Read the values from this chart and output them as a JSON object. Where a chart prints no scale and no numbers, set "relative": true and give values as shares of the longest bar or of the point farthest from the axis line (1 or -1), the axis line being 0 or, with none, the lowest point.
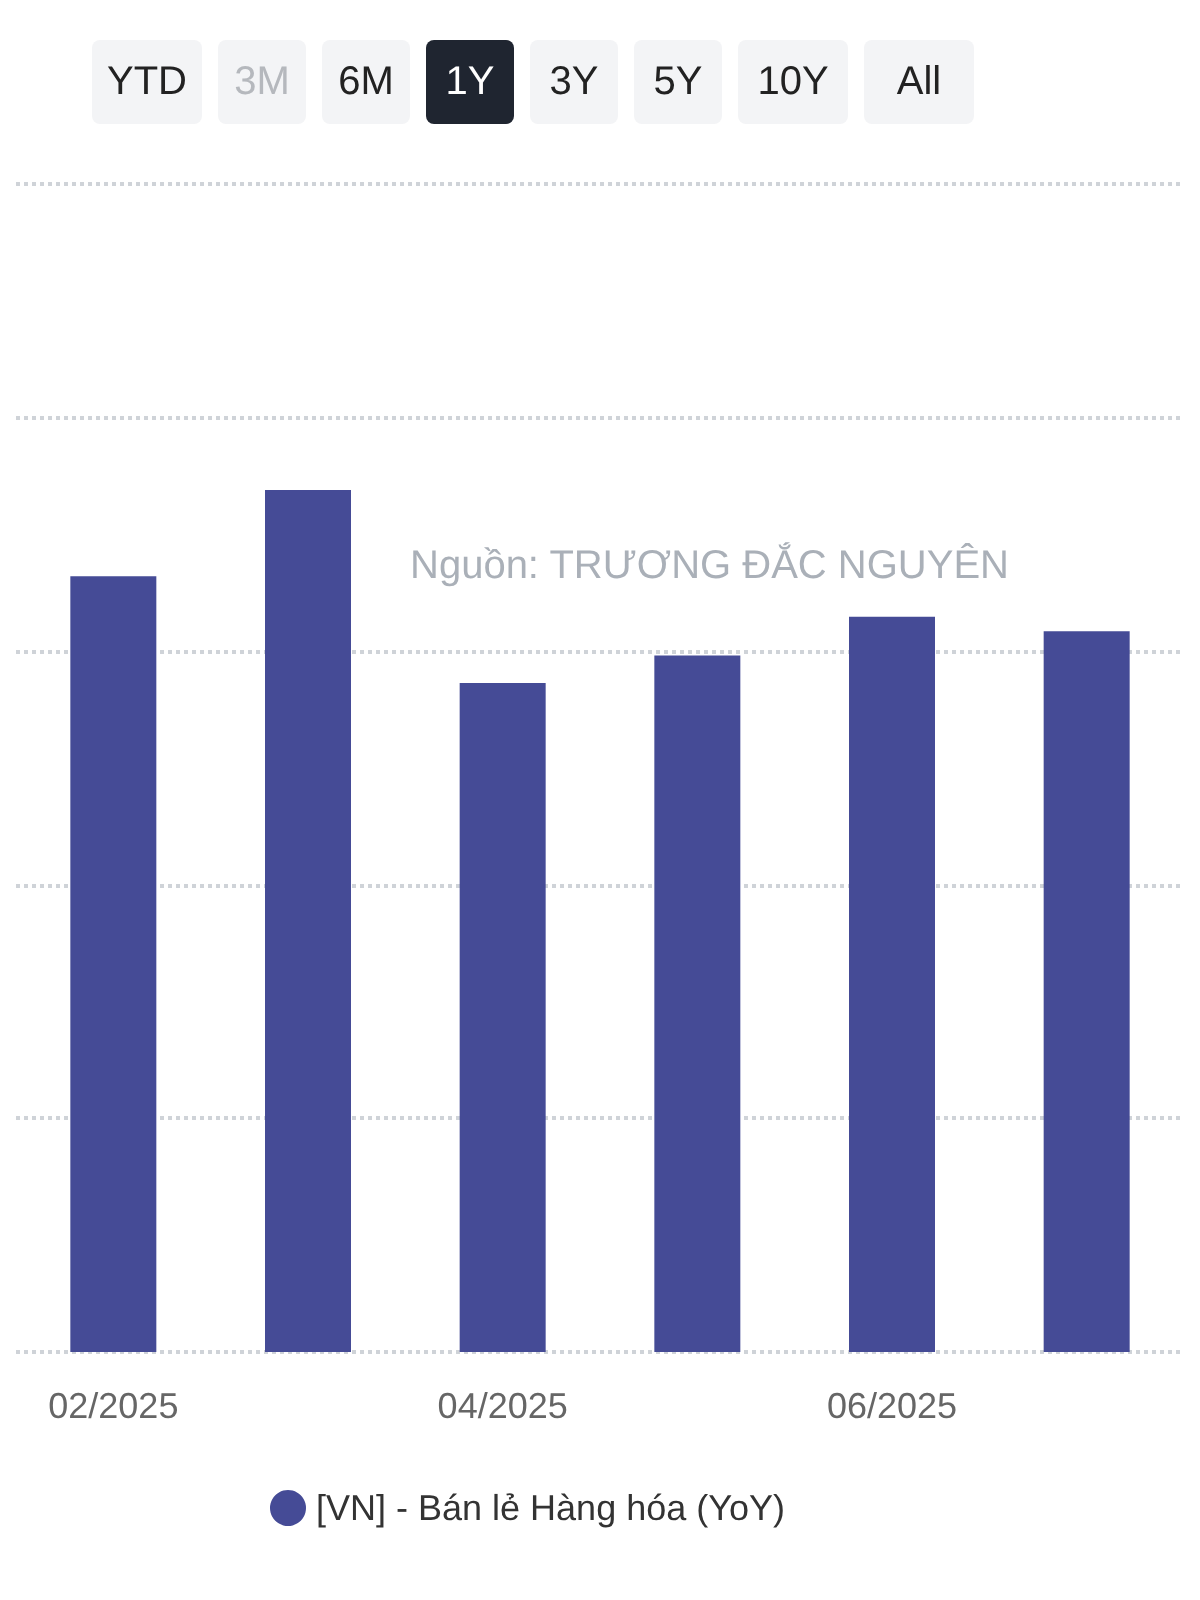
{
  "chart_data": {
    "type": "bar",
    "relative": true,
    "categories": [
      "02/2025",
      null,
      "04/2025",
      null,
      "06/2025",
      null
    ],
    "series": [
      {
        "name": "[VN] - Bán lẻ Hàng hóa (YoY)",
        "color": "#454b96",
        "values": [
          0.9,
          1,
          0.776,
          0.808,
          0.853,
          0.836
        ]
      }
    ],
    "annotations": [
      "YTD",
      "3M",
      "6M",
      "1Y",
      "3Y",
      "5Y",
      "10Y",
      "All",
      "Nguồn: TRƯƠNG ĐẮC NGUYÊN"
    ],
    "grid": "y",
    "legend": "bottom"
  }
}
